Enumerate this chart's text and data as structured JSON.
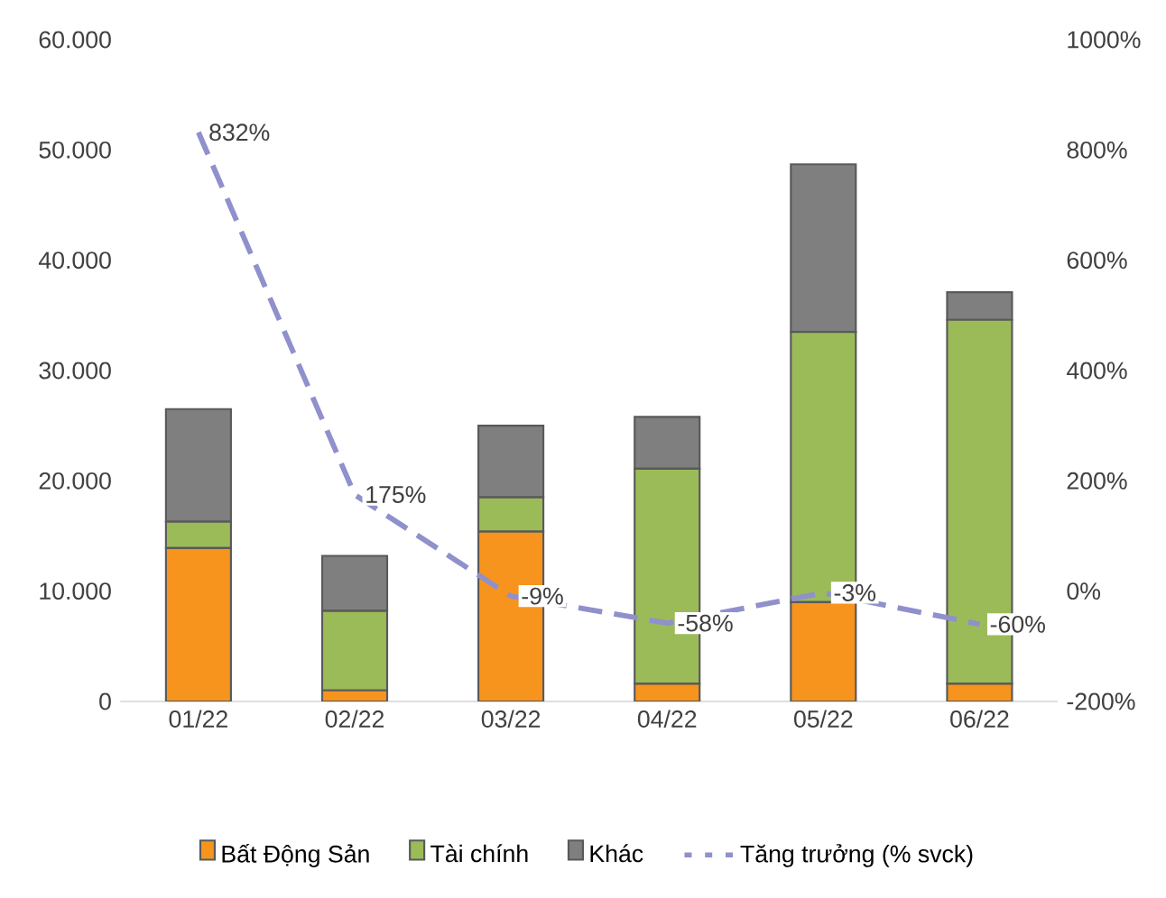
{
  "chart_data": {
    "type": "bar",
    "stacked": true,
    "legend": "bottom",
    "data_labels": false,
    "categories": [
      "01/22",
      "02/22",
      "03/22",
      "04/22",
      "05/22",
      "06/22"
    ],
    "series": [
      {
        "name": "Bất Động Sản",
        "color": "#f7941d",
        "values": [
          13900,
          1000,
          15400,
          1600,
          9000,
          1600
        ]
      },
      {
        "name": "Tài chính",
        "color": "#9bbb59",
        "values": [
          2400,
          7200,
          3100,
          19500,
          24500,
          33000
        ]
      },
      {
        "name": "Khác",
        "color": "#7f7f7f",
        "values": [
          10200,
          5000,
          6500,
          4700,
          15200,
          2500
        ]
      },
      {
        "name": "Tăng trưởng (% svck)",
        "type": "line",
        "axis": "y2",
        "color": "#9090cc",
        "line_style": "dashed",
        "marker": "none",
        "values": [
          832,
          175,
          -9,
          -58,
          -3,
          -60
        ],
        "value_labels": [
          "832%",
          "175%",
          "-9%",
          "-58%",
          "-3%",
          "-60%"
        ]
      }
    ],
    "ylim": [
      0,
      60000
    ],
    "yticks": [
      {
        "value": 0,
        "label": "0"
      },
      {
        "value": 10000,
        "label": "10.000"
      },
      {
        "value": 20000,
        "label": "20.000"
      },
      {
        "value": 30000,
        "label": "30.000"
      },
      {
        "value": 40000,
        "label": "40.000"
      },
      {
        "value": 50000,
        "label": "50.000"
      },
      {
        "value": 60000,
        "label": "60.000"
      }
    ],
    "y2lim": [
      -200,
      1000
    ],
    "y2ticks": [
      {
        "value": -200,
        "label": "-200%"
      },
      {
        "value": 0,
        "label": "0%"
      },
      {
        "value": 200,
        "label": "200%"
      },
      {
        "value": 400,
        "label": "400%"
      },
      {
        "value": 600,
        "label": "600%"
      },
      {
        "value": 800,
        "label": "800%"
      },
      {
        "value": 1000,
        "label": "1000%"
      }
    ]
  }
}
